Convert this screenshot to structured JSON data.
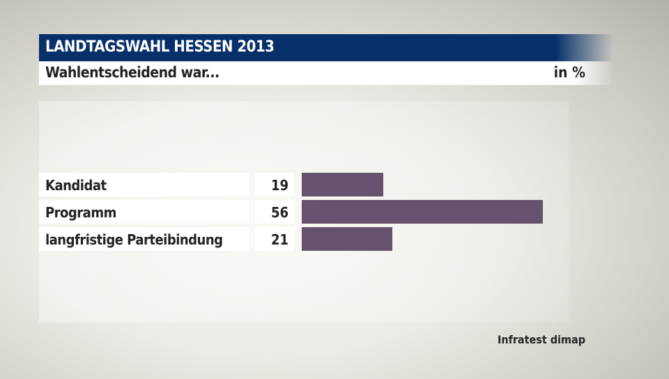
{
  "chart_data": {
    "type": "bar",
    "orientation": "horizontal",
    "title": "LANDTAGSWAHL HESSEN 2013",
    "subtitle": "Wahlentscheidend war...",
    "unit": "in %",
    "categories": [
      "Kandidat",
      "Programm",
      "langfristige Parteibindung"
    ],
    "values": [
      19,
      56,
      21
    ],
    "bar_color": "#66526f",
    "source": "Infratest dimap"
  },
  "colors": {
    "header": "#07306b"
  }
}
